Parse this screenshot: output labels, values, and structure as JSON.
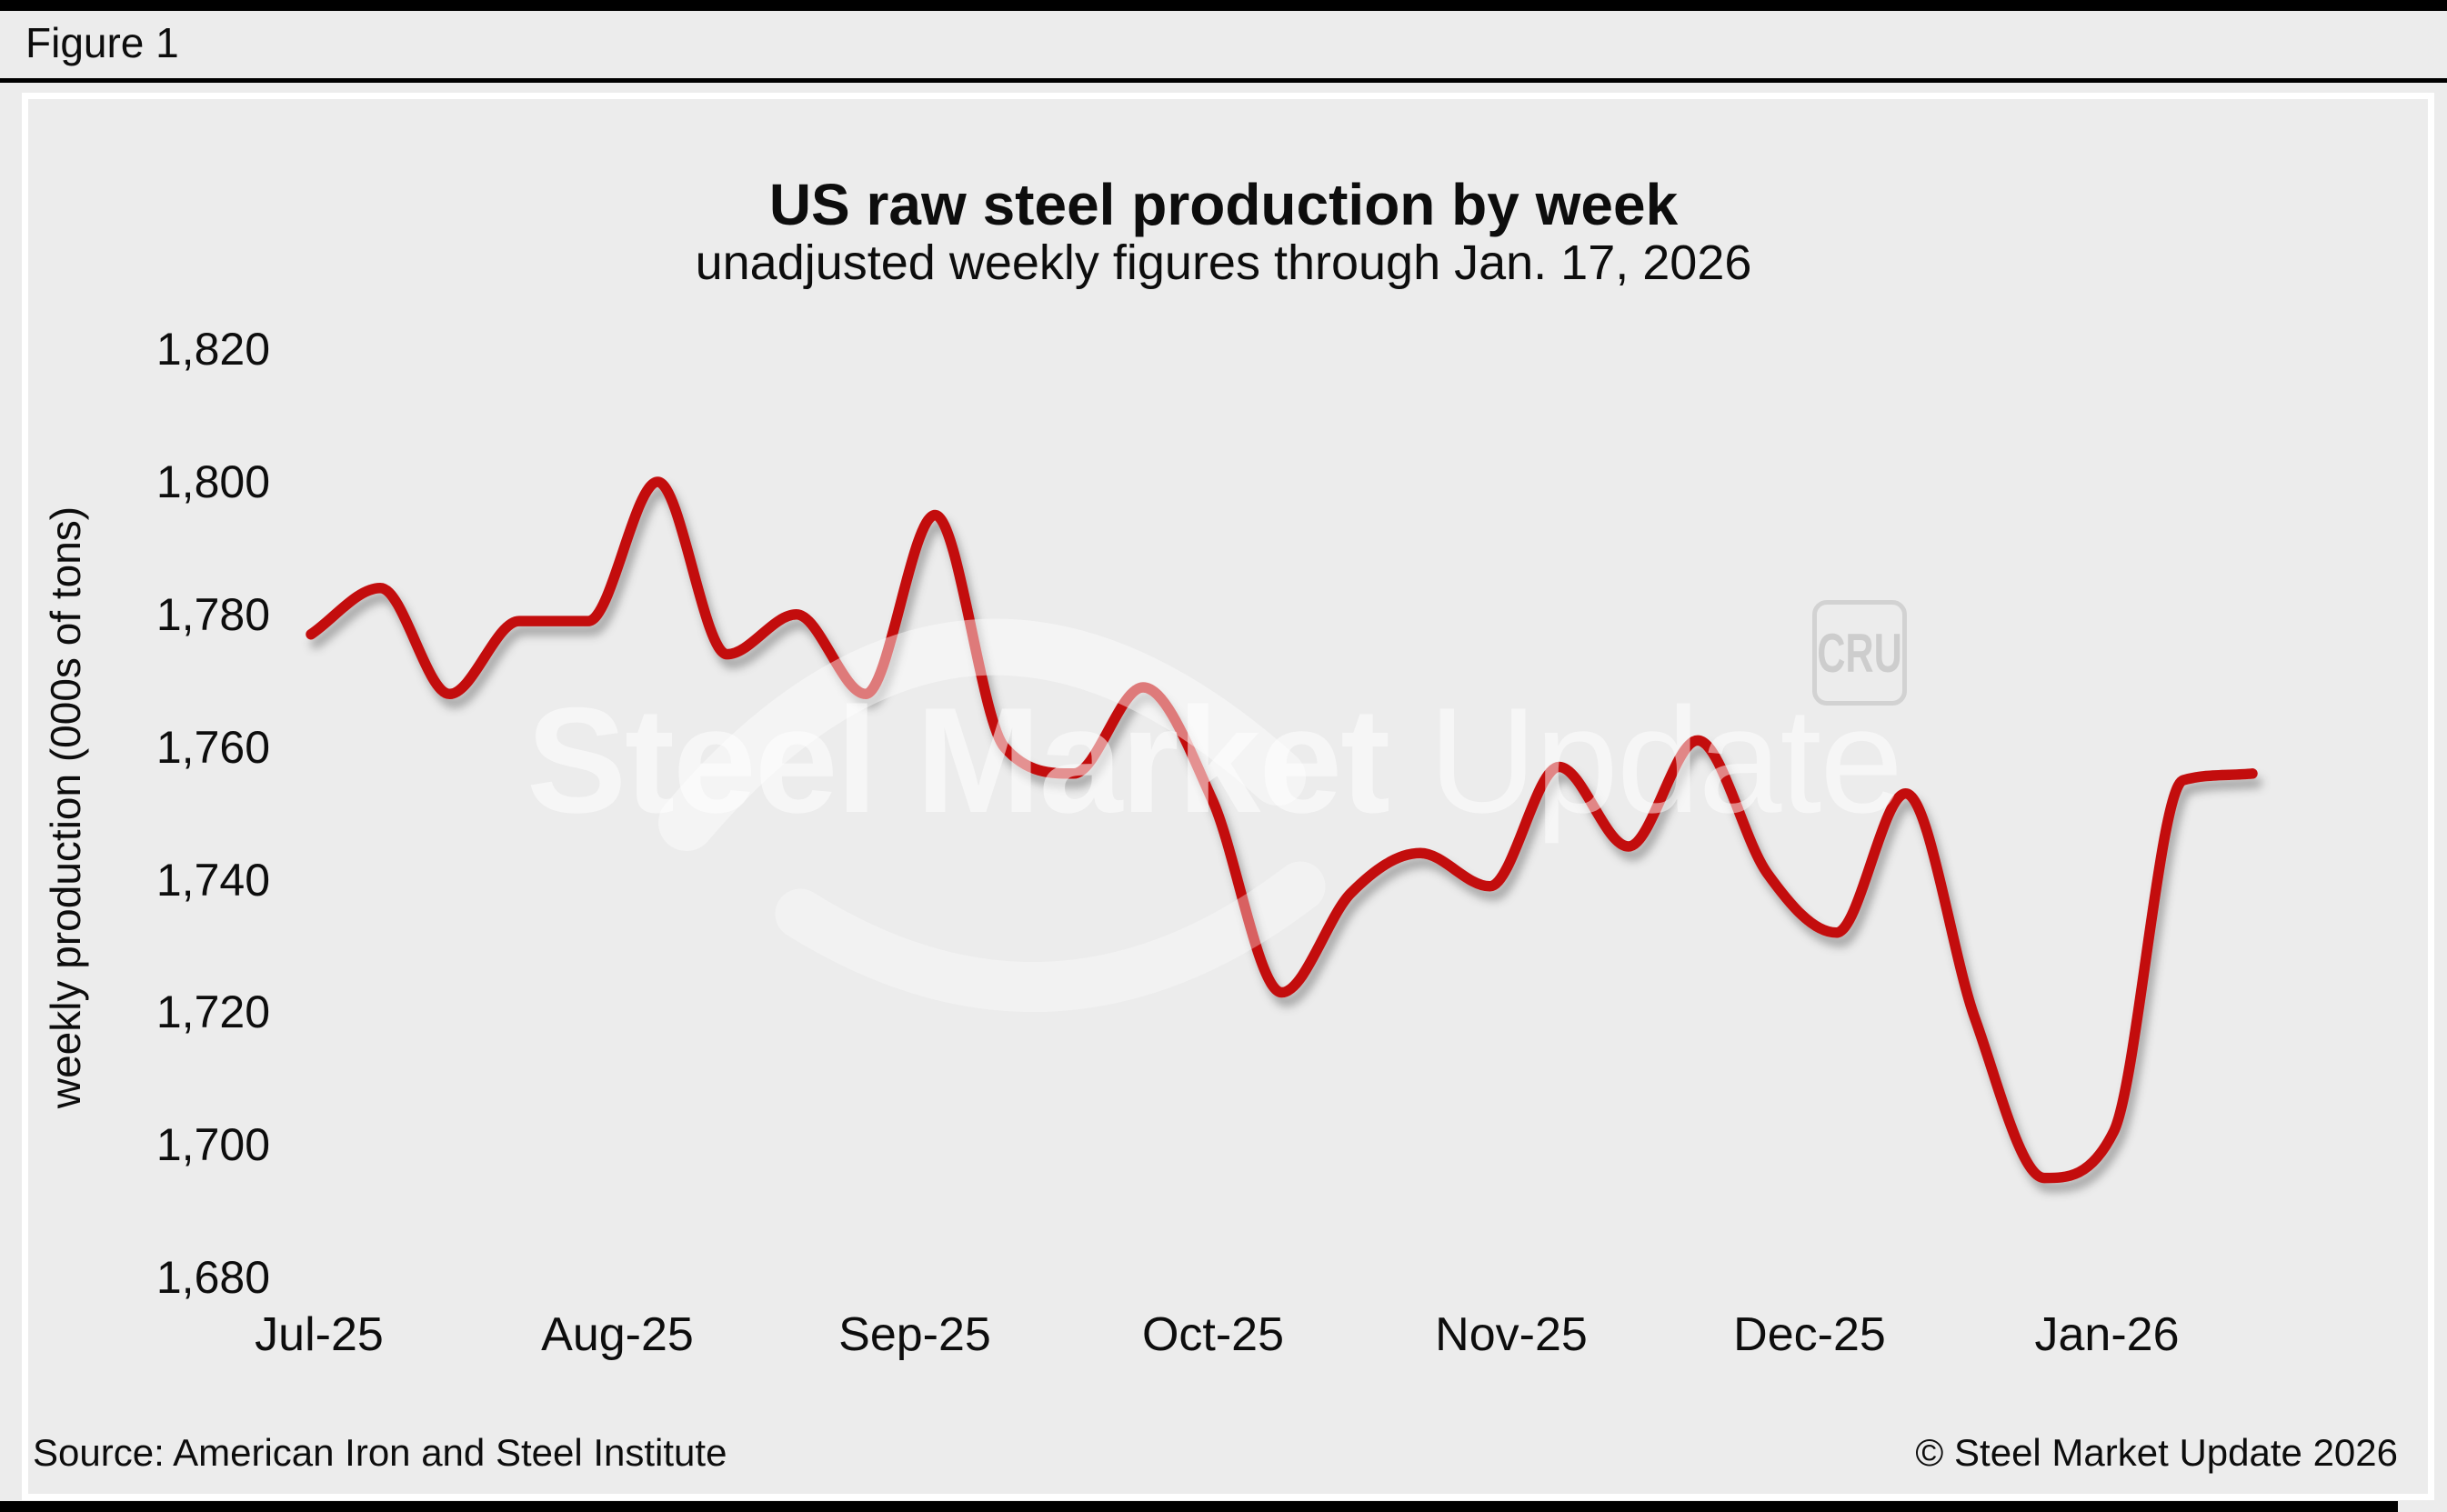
{
  "figure_label": "Figure 1",
  "header": {
    "title": "US raw steel production by week",
    "subtitle": "unadjusted weekly figures through Jan. 17, 2026"
  },
  "footer": {
    "source": "Source: American Iron and Steel Institute",
    "copyright": "© Steel Market Update 2026"
  },
  "watermark": {
    "bold_text": "Steel Market",
    "light_text": "Update",
    "cru_logo": "CRU"
  },
  "chart_data": {
    "type": "line",
    "title": "US raw steel production by week",
    "subtitle": "unadjusted weekly figures through Jan. 17, 2026",
    "series_name": "US weekly raw steel production",
    "xlabel": "",
    "ylabel": "weekly production (000s of tons)",
    "ylim": [
      1680,
      1820
    ],
    "grid": false,
    "legend": false,
    "line_color": "#c30b0c",
    "x_week_ending": [
      "Jul 5 2025",
      "Jul 12 2025",
      "Jul 19 2025",
      "Jul 26 2025",
      "Aug 2 2025",
      "Aug 9 2025",
      "Aug 16 2025",
      "Aug 23 2025",
      "Aug 30 2025",
      "Sep 6 2025",
      "Sep 13 2025",
      "Sep 20 2025",
      "Sep 27 2025",
      "Oct 4 2025",
      "Oct 11 2025",
      "Oct 18 2025",
      "Oct 25 2025",
      "Nov 1 2025",
      "Nov 8 2025",
      "Nov 15 2025",
      "Nov 22 2025",
      "Nov 29 2025",
      "Dec 6 2025",
      "Dec 13 2025",
      "Dec 20 2025",
      "Dec 27 2025",
      "Jan 3 2026",
      "Jan 10 2026",
      "Jan 17 2026"
    ],
    "values": [
      1777,
      1784,
      1768,
      1779,
      1779,
      1800,
      1774,
      1780,
      1768,
      1795,
      1760,
      1756,
      1769,
      1752,
      1723,
      1738,
      1744,
      1739,
      1757,
      1745,
      1761,
      1741,
      1732,
      1753,
      1719,
      1695,
      1702,
      1755,
      1756
    ],
    "yticks": [
      {
        "label": "1,820",
        "value": 1820
      },
      {
        "label": "1,800",
        "value": 1800
      },
      {
        "label": "1,780",
        "value": 1780
      },
      {
        "label": "1,760",
        "value": 1760
      },
      {
        "label": "1,740",
        "value": 1740
      },
      {
        "label": "1,720",
        "value": 1720
      },
      {
        "label": "1,700",
        "value": 1700
      },
      {
        "label": "1,680",
        "value": 1680
      }
    ],
    "xtick_labels": [
      "Jul-25",
      "Aug-25",
      "Sep-25",
      "Oct-25",
      "Nov-25",
      "Dec-25",
      "Jan-26"
    ]
  }
}
